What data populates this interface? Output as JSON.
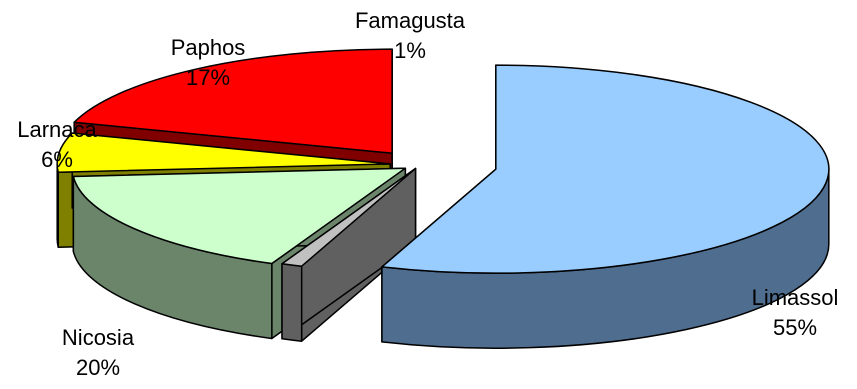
{
  "chart_data": {
    "type": "pie",
    "style": "3d-exploded",
    "title": "",
    "legend": "none",
    "slices": [
      {
        "label": "Limassol",
        "value": 55,
        "display": "55%",
        "top_color": "#99ccff",
        "side_color": "#4f6d8f"
      },
      {
        "label": "Famagusta",
        "value": 1,
        "display": "1%",
        "top_color": "#c0c0c0",
        "side_color": "#606060"
      },
      {
        "label": "Paphos",
        "value": 17,
        "display": "17%",
        "top_color": "#ccffcc",
        "side_color": "#6b856b"
      },
      {
        "label": "Larnaca",
        "value": 6,
        "display": "6%",
        "top_color": "#ffff00",
        "side_color": "#808000"
      },
      {
        "label": "Nicosia",
        "value": 20,
        "display": "20%",
        "top_color": "#ff0000",
        "side_color": "#800000"
      }
    ]
  }
}
